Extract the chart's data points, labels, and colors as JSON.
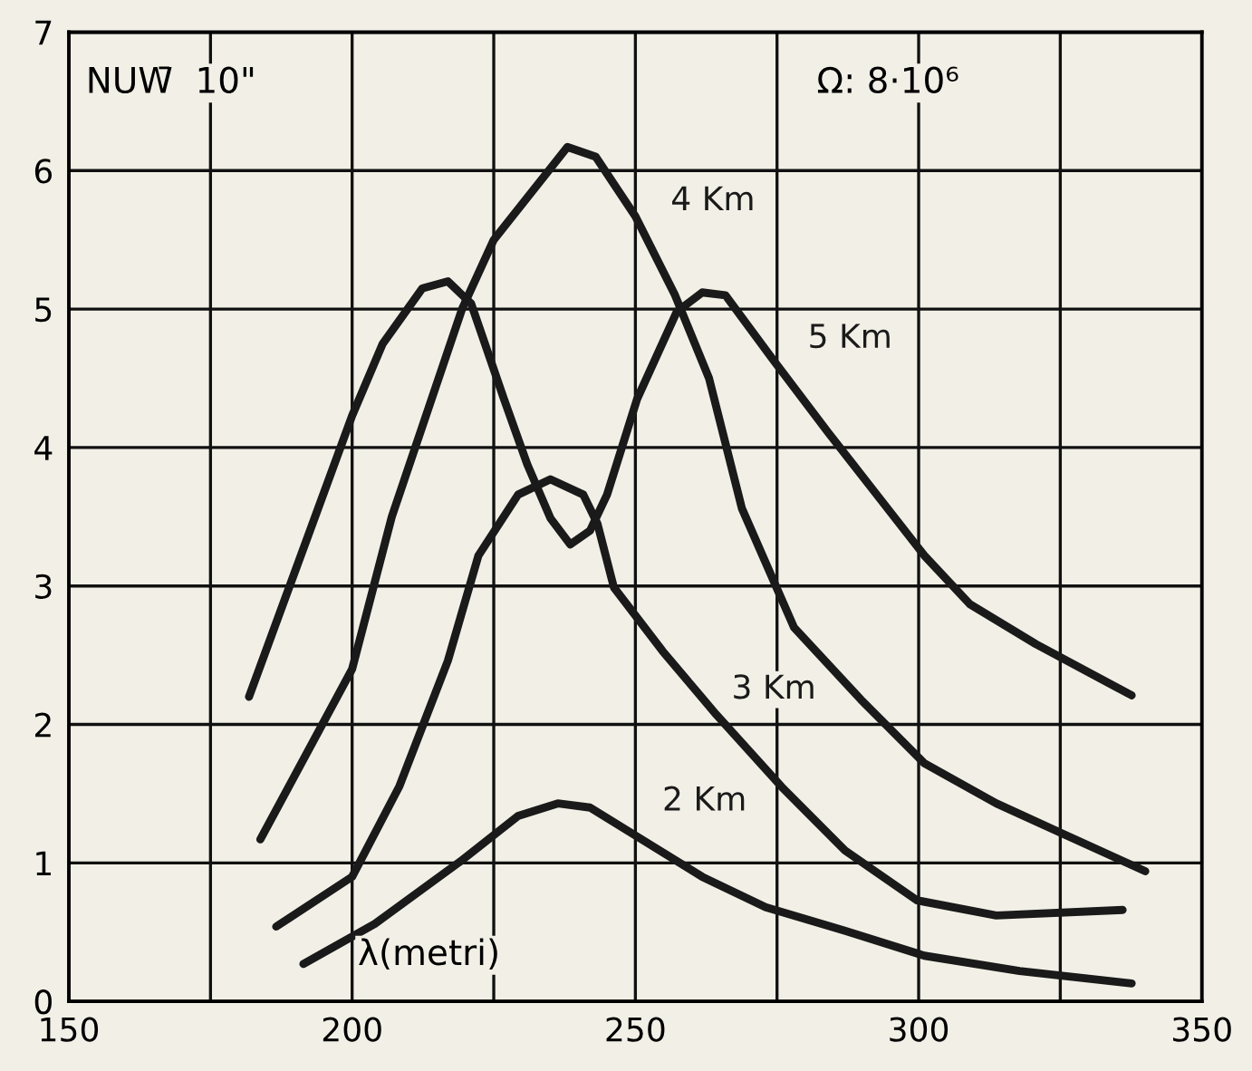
{
  "chart_data": {
    "type": "line",
    "xlabel": "λ(metri)",
    "annotations": [
      "NUW̄  10\"",
      "Ω: 8·10⁶"
    ],
    "series": [
      {
        "name": "4 Km",
        "color": "#1a1a1a",
        "x": [
          183.8,
          200,
          207,
          219.4,
          225,
          238,
          243,
          250,
          257,
          263,
          268.8,
          278,
          289.8,
          301,
          313.7,
          326,
          340
        ],
        "values": [
          1.17,
          2.4,
          3.5,
          5.0,
          5.5,
          6.17,
          6.1,
          5.67,
          5.1,
          4.5,
          3.56,
          2.7,
          2.18,
          1.72,
          1.43,
          1.2,
          0.94
        ]
      },
      {
        "name": "5 Km",
        "color": "#1a1a1a",
        "x": [
          181.8,
          194,
          200,
          205.4,
          212.4,
          216.9,
          221,
          226.8,
          230.9,
          235,
          238.5,
          242,
          245,
          250.3,
          257.3,
          261.8,
          265.9,
          274.2,
          284,
          292.6,
          301,
          309,
          320.7,
          337.6
        ],
        "values": [
          2.2,
          3.56,
          4.23,
          4.75,
          5.15,
          5.2,
          5.04,
          4.35,
          3.88,
          3.49,
          3.3,
          3.4,
          3.66,
          4.35,
          4.98,
          5.12,
          5.1,
          4.64,
          4.11,
          3.66,
          3.22,
          2.87,
          2.58,
          2.21
        ]
      },
      {
        "name": "3 Km",
        "color": "#1a1a1a",
        "x": [
          186.6,
          200,
          208.3,
          216.9,
          222.3,
          229.3,
          235,
          240.8,
          243.3,
          246.2,
          254.8,
          264.3,
          275.8,
          287,
          299.7,
          313.7,
          336
        ],
        "values": [
          0.54,
          0.9,
          1.55,
          2.46,
          3.22,
          3.66,
          3.77,
          3.66,
          3.45,
          2.99,
          2.53,
          2.07,
          1.55,
          1.09,
          0.73,
          0.62,
          0.66
        ]
      },
      {
        "name": "2 Km",
        "color": "#1a1a1a",
        "x": [
          191.4,
          204,
          219.4,
          229.3,
          236.3,
          242,
          250.3,
          261.8,
          273,
          287,
          301,
          317.8,
          337.6
        ],
        "values": [
          0.27,
          0.56,
          1.02,
          1.34,
          1.43,
          1.4,
          1.19,
          0.9,
          0.68,
          0.51,
          0.33,
          0.22,
          0.13
        ]
      }
    ],
    "xlim": [
      150,
      350
    ],
    "ylim": [
      0,
      7
    ],
    "xticks": [
      150,
      {
        "value": 175,
        "label": null
      },
      200,
      {
        "value": 225,
        "label": null
      },
      250,
      {
        "value": 275,
        "label": null
      },
      300,
      {
        "value": 325,
        "label": null
      },
      350
    ],
    "yticks": [
      0,
      1,
      2,
      3,
      4,
      5,
      6,
      7
    ],
    "grid": true,
    "marker": "none",
    "line_style": "solid"
  }
}
